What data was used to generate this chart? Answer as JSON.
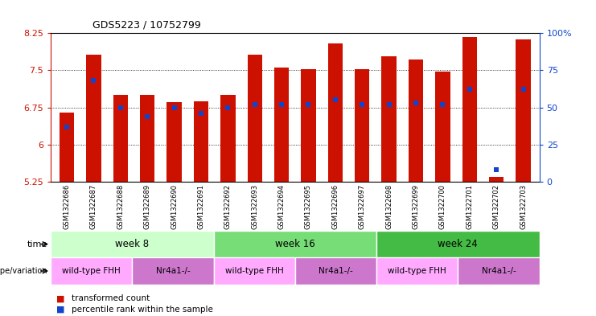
{
  "title": "GDS5223 / 10752799",
  "samples": [
    "GSM1322686",
    "GSM1322687",
    "GSM1322688",
    "GSM1322689",
    "GSM1322690",
    "GSM1322691",
    "GSM1322692",
    "GSM1322693",
    "GSM1322694",
    "GSM1322695",
    "GSM1322696",
    "GSM1322697",
    "GSM1322698",
    "GSM1322699",
    "GSM1322700",
    "GSM1322701",
    "GSM1322702",
    "GSM1322703"
  ],
  "transformed_count": [
    6.65,
    7.82,
    7.0,
    7.0,
    6.85,
    6.87,
    7.0,
    7.82,
    7.55,
    7.52,
    8.05,
    7.52,
    7.78,
    7.72,
    7.48,
    8.18,
    5.35,
    8.12
  ],
  "percentile_rank": [
    37,
    68,
    50,
    44,
    50,
    46,
    50,
    52,
    52,
    52,
    55,
    52,
    52,
    53,
    52,
    62,
    8,
    62
  ],
  "y_min": 5.25,
  "y_max": 8.25,
  "y_ticks": [
    5.25,
    6.0,
    6.75,
    7.5,
    8.25
  ],
  "y_tick_labels": [
    "5.25",
    "6",
    "6.75",
    "7.5",
    "8.25"
  ],
  "y2_ticks": [
    0,
    25,
    50,
    75,
    100
  ],
  "bar_color": "#cc1100",
  "dot_color": "#1144cc",
  "bar_width": 0.55,
  "time_groups": [
    {
      "label": "week 8",
      "start": 0,
      "end": 6,
      "color": "#ccffcc"
    },
    {
      "label": "week 16",
      "start": 6,
      "end": 12,
      "color": "#77dd77"
    },
    {
      "label": "week 24",
      "start": 12,
      "end": 18,
      "color": "#44bb44"
    }
  ],
  "genotype_groups": [
    {
      "label": "wild-type FHH",
      "start": 0,
      "end": 3,
      "color": "#ffaaff"
    },
    {
      "label": "Nr4a1-/-",
      "start": 3,
      "end": 6,
      "color": "#cc77cc"
    },
    {
      "label": "wild-type FHH",
      "start": 6,
      "end": 9,
      "color": "#ffaaff"
    },
    {
      "label": "Nr4a1-/-",
      "start": 9,
      "end": 12,
      "color": "#cc77cc"
    },
    {
      "label": "wild-type FHH",
      "start": 12,
      "end": 15,
      "color": "#ffaaff"
    },
    {
      "label": "Nr4a1-/-",
      "start": 15,
      "end": 18,
      "color": "#cc77cc"
    }
  ],
  "time_label": "time",
  "genotype_label": "genotype/variation",
  "legend_items": [
    {
      "label": "transformed count",
      "color": "#cc1100"
    },
    {
      "label": "percentile rank within the sample",
      "color": "#1144cc"
    }
  ],
  "sample_row_color": "#cccccc",
  "grid_color": "#000000"
}
